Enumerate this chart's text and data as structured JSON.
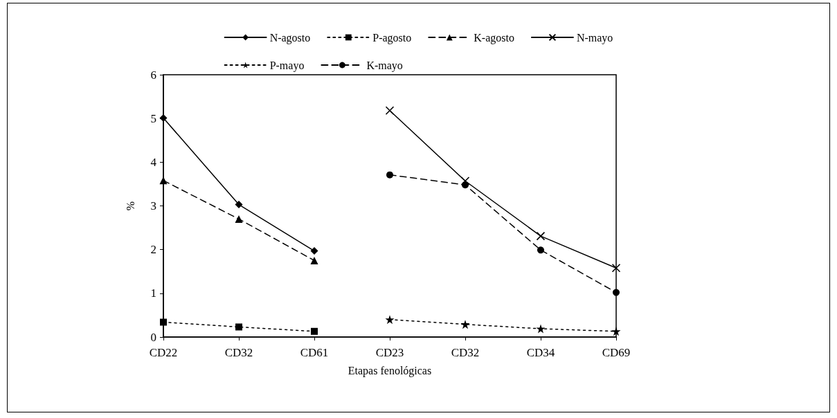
{
  "chart_data": {
    "type": "line",
    "ylabel": "%",
    "xlabel": "Etapas fenológicas",
    "categories": [
      "CD22",
      "CD32",
      "CD61",
      "CD23",
      "CD32",
      "CD34",
      "CD69"
    ],
    "series": [
      {
        "name": "N-agosto",
        "color": "#000000",
        "marker": "diamond",
        "line_style": "solid",
        "values": [
          5.01,
          3.03,
          1.97,
          null,
          null,
          null,
          null
        ]
      },
      {
        "name": "P-agosto",
        "color": "#000000",
        "marker": "square",
        "line_style": "dotted",
        "values": [
          0.34,
          0.23,
          0.13,
          null,
          null,
          null,
          null
        ]
      },
      {
        "name": "K-agosto",
        "color": "#000000",
        "marker": "triangle",
        "line_style": "dashed",
        "values": [
          3.58,
          2.7,
          1.75,
          null,
          null,
          null,
          null
        ]
      },
      {
        "name": "N-mayo",
        "color": "#000000",
        "marker": "cross",
        "line_style": "solid",
        "values": [
          null,
          null,
          null,
          5.18,
          3.57,
          2.31,
          1.58
        ]
      },
      {
        "name": "P-mayo",
        "color": "#000000",
        "marker": "star",
        "line_style": "dotted",
        "values": [
          null,
          null,
          null,
          0.4,
          0.29,
          0.19,
          0.13
        ]
      },
      {
        "name": "K-mayo",
        "color": "#000000",
        "marker": "circle",
        "line_style": "dashed",
        "values": [
          null,
          null,
          null,
          3.71,
          3.48,
          1.99,
          1.02
        ]
      }
    ],
    "ylim": [
      0,
      6
    ],
    "yticks": [
      0,
      1,
      2,
      3,
      4,
      5,
      6
    ],
    "grid": false,
    "legend": "top"
  }
}
